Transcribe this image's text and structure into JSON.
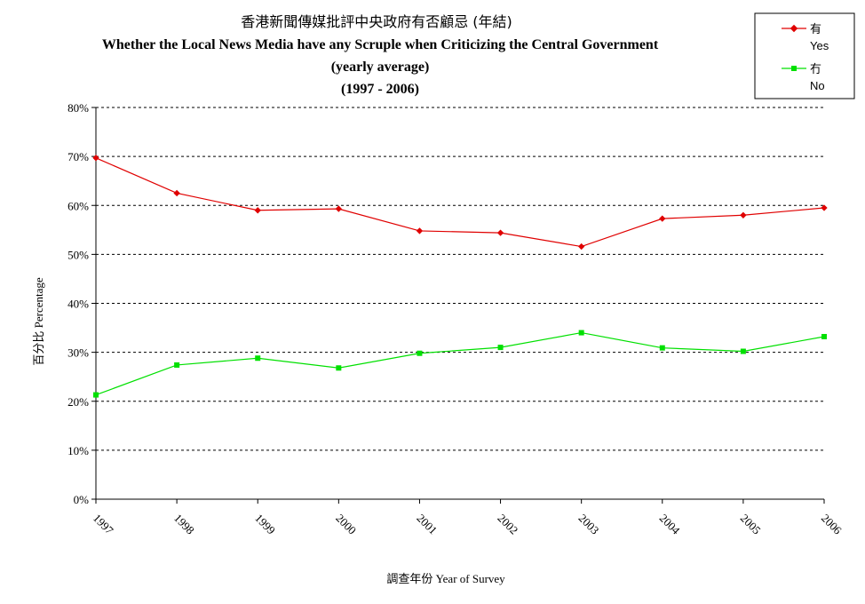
{
  "chart_data": {
    "type": "line",
    "title_lines": [
      "香港新聞傳媒批評中央政府有否顧忌 (年結)",
      "Whether the Local News Media have any Scruple when Criticizing the Central Government",
      "(yearly average)",
      "(1997 - 2006)"
    ],
    "xlabel": "調查年份 Year of Survey",
    "ylabel": "百分比 Percentage",
    "categories": [
      "1997",
      "1998",
      "1999",
      "2000",
      "2001",
      "2002",
      "2003",
      "2004",
      "2005",
      "2006"
    ],
    "y_ticks": [
      "0%",
      "10%",
      "20%",
      "30%",
      "40%",
      "50%",
      "60%",
      "70%",
      "80%"
    ],
    "ylim": [
      0,
      80
    ],
    "grid": "horizontal dashed",
    "legend_position": "top-right",
    "series": [
      {
        "name": "有",
        "name_en": "Yes",
        "color": "#e00000",
        "marker": "diamond",
        "values": [
          69.7,
          62.5,
          59.0,
          59.3,
          54.8,
          54.4,
          51.6,
          57.3,
          58.0,
          59.5
        ]
      },
      {
        "name": "冇",
        "name_en": "No",
        "color": "#00e000",
        "marker": "square",
        "values": [
          21.3,
          27.4,
          28.8,
          26.8,
          29.8,
          31.0,
          34.0,
          30.9,
          30.2,
          33.2
        ]
      }
    ]
  }
}
